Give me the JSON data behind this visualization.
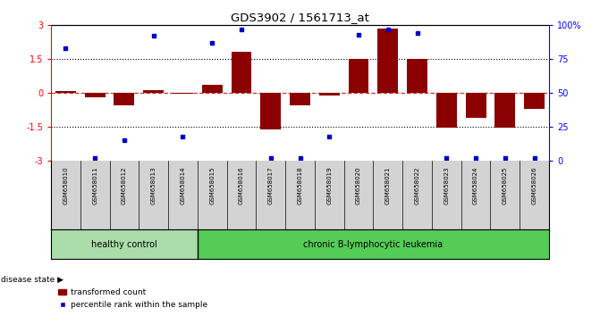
{
  "title": "GDS3902 / 1561713_at",
  "samples": [
    "GSM658010",
    "GSM658011",
    "GSM658012",
    "GSM658013",
    "GSM658014",
    "GSM658015",
    "GSM658016",
    "GSM658017",
    "GSM658018",
    "GSM658019",
    "GSM658020",
    "GSM658021",
    "GSM658022",
    "GSM658023",
    "GSM658024",
    "GSM658025",
    "GSM658026"
  ],
  "bar_values": [
    0.07,
    -0.18,
    -0.55,
    0.12,
    -0.04,
    0.35,
    1.82,
    -1.62,
    -0.55,
    -0.12,
    1.5,
    2.87,
    1.5,
    -1.55,
    -1.12,
    -1.55,
    -0.72
  ],
  "percentile_dots_pct": [
    83,
    2,
    15,
    92,
    18,
    87,
    97,
    2,
    2,
    18,
    93,
    97,
    94,
    2,
    2,
    2,
    2
  ],
  "bar_color": "#8B0000",
  "dot_color": "#0000CD",
  "ylim_min": -3,
  "ylim_max": 3,
  "y2lim_min": 0,
  "y2lim_max": 100,
  "yticks": [
    -3,
    -1.5,
    0,
    1.5,
    3
  ],
  "ytick_labels": [
    "-3",
    "-1.5",
    "0",
    "1.5",
    "3"
  ],
  "y2ticks": [
    0,
    25,
    50,
    75,
    100
  ],
  "y2tick_labels": [
    "0",
    "25",
    "50",
    "75",
    "100%"
  ],
  "healthy_count": 5,
  "healthy_label": "healthy control",
  "disease_label": "chronic B-lymphocytic leukemia",
  "legend_bar": "transformed count",
  "legend_dot": "percentile rank within the sample",
  "disease_state_label": "disease state",
  "bg_white": "#ffffff",
  "dotted_line_color": "#000000",
  "dashed_line_color": "#cc3333",
  "sample_bg": "#d3d3d3",
  "healthy_fill": "#aaddaa",
  "disease_fill": "#55cc55"
}
